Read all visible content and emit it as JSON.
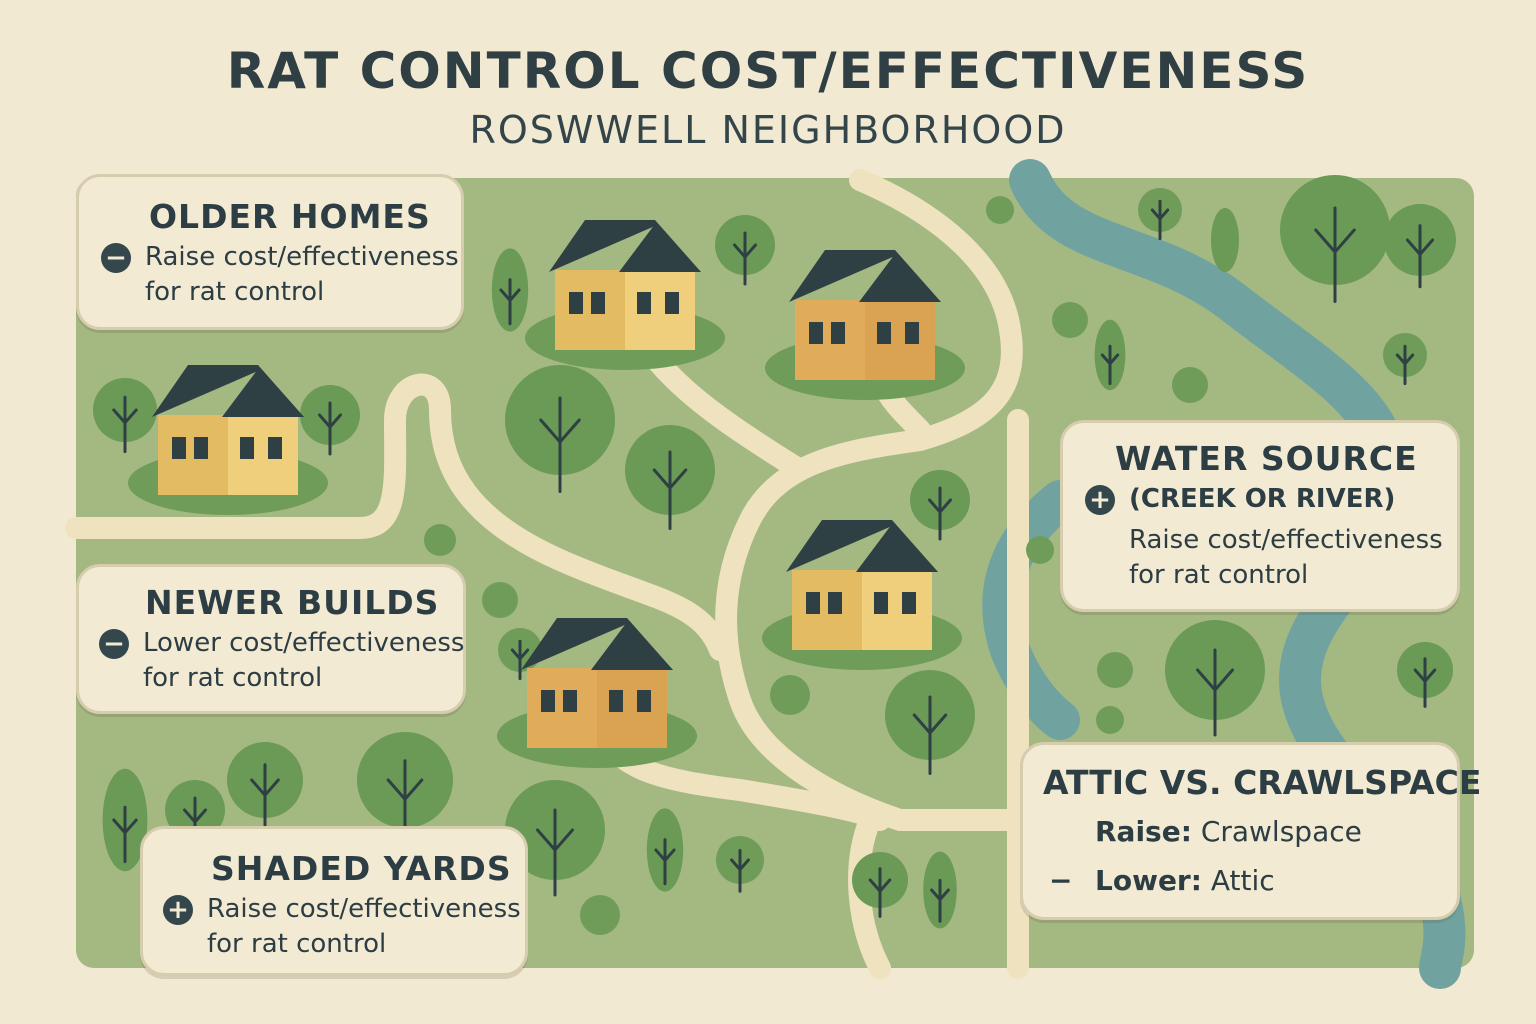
{
  "title": "RAT CONTROL COST/EFFECTIVENESS",
  "subtitle": "ROSWWELL NEIGHBORHOOD",
  "colors": {
    "background": "#f2e9d3",
    "grass": "#a4b882",
    "tree": "#6a9a55",
    "road": "#eee2bf",
    "river": "#70a3a0",
    "house_yellow": "#f0cf7c",
    "house_orange": "#d9a352",
    "roof": "#2f4045",
    "card": "#f3ead4",
    "text": "#2c3d43"
  },
  "cards": {
    "older_homes": {
      "heading": "OLDER HOMES",
      "icon": "minus-circle-icon",
      "sign": "−",
      "line1": "Raise cost/effectiveness",
      "line2": "for rat control"
    },
    "newer_builds": {
      "heading": "NEWER BUILDS",
      "icon": "minus-circle-icon",
      "sign": "−",
      "line1": "Lower cost/effectiveness",
      "line2": "for rat control"
    },
    "shaded_yards": {
      "heading": "SHADED YARDS",
      "icon": "plus-circle-icon",
      "sign": "+",
      "line1": "Raise cost/effectiveness",
      "line2": "for rat control"
    },
    "water_source": {
      "heading": "WATER SOURCE",
      "icon": "plus-circle-icon",
      "sign": "+",
      "line1": "(CREEK OR RIVER)",
      "line2": "Raise cost/effectiveness",
      "line3": "for rat control"
    },
    "attic_crawlspace": {
      "heading": "ATTIC VS. CRAWLSPACE",
      "raise_label": "Raise:",
      "raise_value": "Crawlspace",
      "icon": "minus-icon",
      "sign": "−",
      "lower_label": "Lower:",
      "lower_value": "Attic"
    }
  }
}
